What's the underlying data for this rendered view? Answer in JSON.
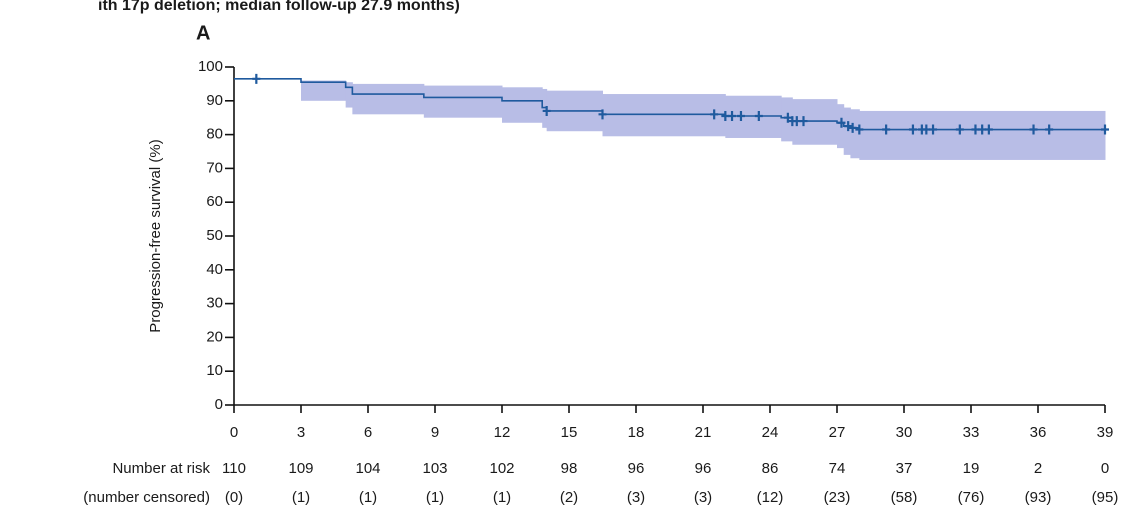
{
  "chart_data": {
    "type": "km",
    "title": "ith 17p deletion; median follow-up 27.9 months)",
    "panel_label": "A",
    "y_label": "Progression-free survival (%)",
    "color": "#1f5a9e",
    "band_color": "#b8bde6",
    "x": [
      0,
      3,
      5,
      5.3,
      8.5,
      12,
      13.8,
      14,
      16.5,
      22,
      24.5,
      25,
      27,
      27.3,
      27.6,
      28,
      39
    ],
    "values": [
      96.5,
      95.5,
      94,
      92,
      91,
      90,
      88,
      87,
      86,
      85.5,
      85,
      84,
      83.5,
      82.5,
      82,
      81.5,
      81.5
    ],
    "ci_upper": [
      96.5,
      96,
      95.5,
      95,
      94.5,
      94,
      93.5,
      93,
      92,
      91.5,
      91,
      90.5,
      89,
      88,
      87.5,
      87,
      87
    ],
    "ci_lower": [
      96.5,
      90,
      88,
      86,
      85,
      83.5,
      82,
      81,
      79.5,
      79,
      78,
      77,
      76,
      74,
      73,
      72.5,
      72.5
    ],
    "censored_x": [
      1,
      14,
      16.5,
      21.5,
      22,
      22.3,
      22.7,
      23.5,
      24.8,
      25,
      25.2,
      25.5,
      27.2,
      27.5,
      27.7,
      28,
      29.2,
      30.4,
      30.8,
      31,
      31.3,
      32.5,
      33.2,
      33.5,
      33.8,
      35.8,
      36.5,
      39
    ],
    "censored_values": [
      96.5,
      87,
      86,
      86,
      85.5,
      85.5,
      85.5,
      85.5,
      85,
      84,
      84,
      84,
      83.5,
      82.5,
      82,
      81.5,
      81.5,
      81.5,
      81.5,
      81.5,
      81.5,
      81.5,
      81.5,
      81.5,
      81.5,
      81.5,
      81.5,
      81.5
    ],
    "xlim": [
      0,
      39
    ],
    "xticks": [
      0,
      3,
      6,
      9,
      12,
      15,
      18,
      21,
      24,
      27,
      30,
      33,
      36,
      39
    ],
    "ylim": [
      0,
      100
    ],
    "yticks": [
      0,
      10,
      20,
      30,
      40,
      50,
      60,
      70,
      80,
      90,
      100
    ],
    "risk_table": {
      "at_risk_label": "Number at risk",
      "censored_label": "(number censored)",
      "at_risk": [
        110,
        109,
        104,
        103,
        102,
        98,
        96,
        96,
        86,
        74,
        37,
        19,
        2,
        0
      ],
      "censored": [
        "(0)",
        "(1)",
        "(1)",
        "(1)",
        "(1)",
        "(2)",
        "(3)",
        "(3)",
        "(12)",
        "(23)",
        "(58)",
        "(76)",
        "(93)",
        "(95)"
      ]
    }
  }
}
